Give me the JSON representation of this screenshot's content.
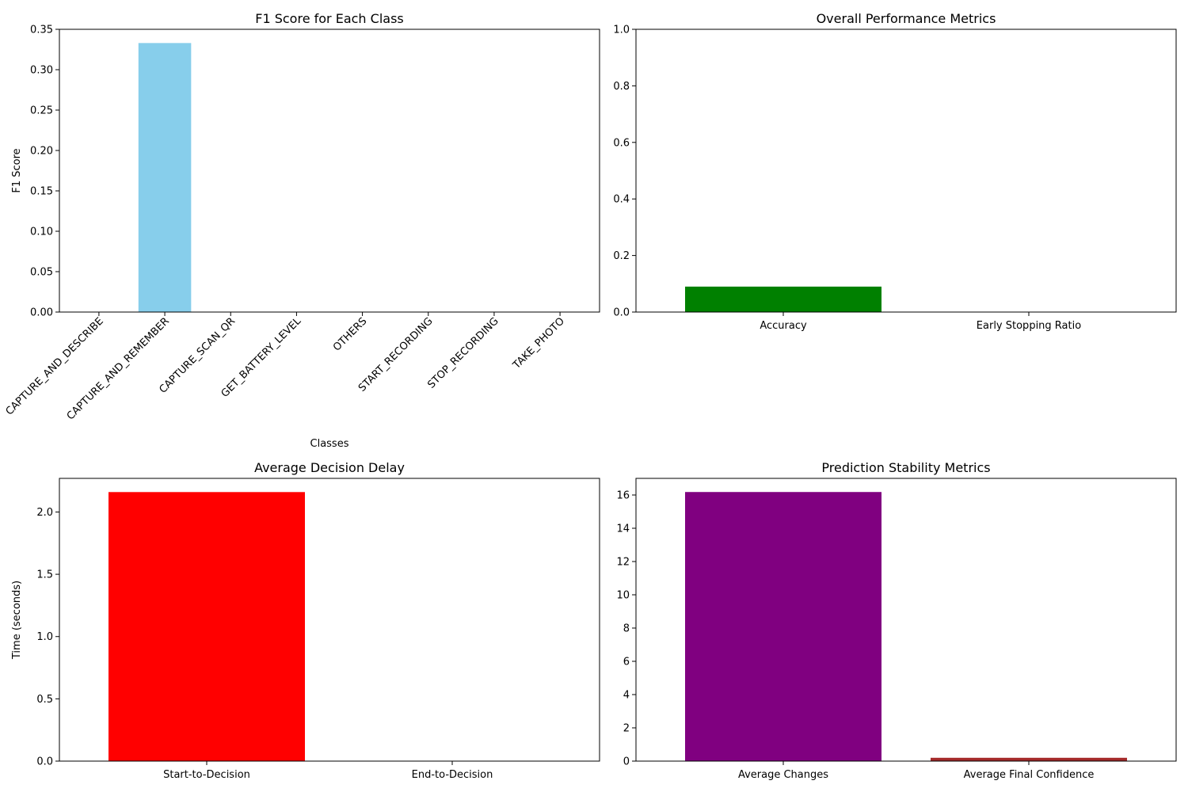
{
  "chart_data": [
    {
      "type": "bar",
      "title": "F1 Score for Each Class",
      "xlabel": "Classes",
      "ylabel": "F1 Score",
      "categories": [
        "CAPTURE_AND_DESCRIBE",
        "CAPTURE_AND_REMEMBER",
        "CAPTURE_SCAN_QR",
        "GET_BATTERY_LEVEL",
        "OTHERS",
        "START_RECORDING",
        "STOP_RECORDING",
        "TAKE_PHOTO"
      ],
      "values": [
        0.0,
        0.333,
        0.0,
        0.0,
        0.0,
        0.0,
        0.0,
        0.0
      ],
      "colors": [
        "#87ceeb",
        "#87ceeb",
        "#87ceeb",
        "#87ceeb",
        "#87ceeb",
        "#87ceeb",
        "#87ceeb",
        "#87ceeb"
      ],
      "ylim": [
        0,
        0.35
      ],
      "yticks": [
        0.0,
        0.05,
        0.1,
        0.15,
        0.2,
        0.25,
        0.3,
        0.35
      ],
      "ytick_labels": [
        "0.00",
        "0.05",
        "0.10",
        "0.15",
        "0.20",
        "0.25",
        "0.30",
        "0.35"
      ],
      "xtick_rotation": 45,
      "grid": false
    },
    {
      "type": "bar",
      "title": "Overall Performance Metrics",
      "xlabel": "",
      "ylabel": "",
      "categories": [
        "Accuracy",
        "Early Stopping Ratio"
      ],
      "values": [
        0.09,
        0.0
      ],
      "colors": [
        "#008000",
        "#ff0000"
      ],
      "ylim": [
        0,
        1.0
      ],
      "yticks": [
        0.0,
        0.2,
        0.4,
        0.6,
        0.8,
        1.0
      ],
      "ytick_labels": [
        "0.0",
        "0.2",
        "0.4",
        "0.6",
        "0.8",
        "1.0"
      ],
      "xtick_rotation": 0,
      "grid": false
    },
    {
      "type": "bar",
      "title": "Average Decision Delay",
      "xlabel": "",
      "ylabel": "Time (seconds)",
      "categories": [
        "Start-to-Decision",
        "End-to-Decision"
      ],
      "values": [
        2.16,
        0.0
      ],
      "colors": [
        "#ff0000",
        "#ff0000"
      ],
      "ylim": [
        0,
        2.27
      ],
      "yticks": [
        0.0,
        0.5,
        1.0,
        1.5,
        2.0
      ],
      "ytick_labels": [
        "0.0",
        "0.5",
        "1.0",
        "1.5",
        "2.0"
      ],
      "xtick_rotation": 0,
      "grid": false
    },
    {
      "type": "bar",
      "title": "Prediction Stability Metrics",
      "xlabel": "",
      "ylabel": "",
      "categories": [
        "Average Changes",
        "Average Final Confidence"
      ],
      "values": [
        16.18,
        0.2
      ],
      "colors": [
        "#800080",
        "#a52a2a"
      ],
      "ylim": [
        0,
        17
      ],
      "yticks": [
        0,
        2,
        4,
        6,
        8,
        10,
        12,
        14,
        16
      ],
      "ytick_labels": [
        "0",
        "2",
        "4",
        "6",
        "8",
        "10",
        "12",
        "14",
        "16"
      ],
      "xtick_rotation": 0,
      "grid": false
    }
  ]
}
